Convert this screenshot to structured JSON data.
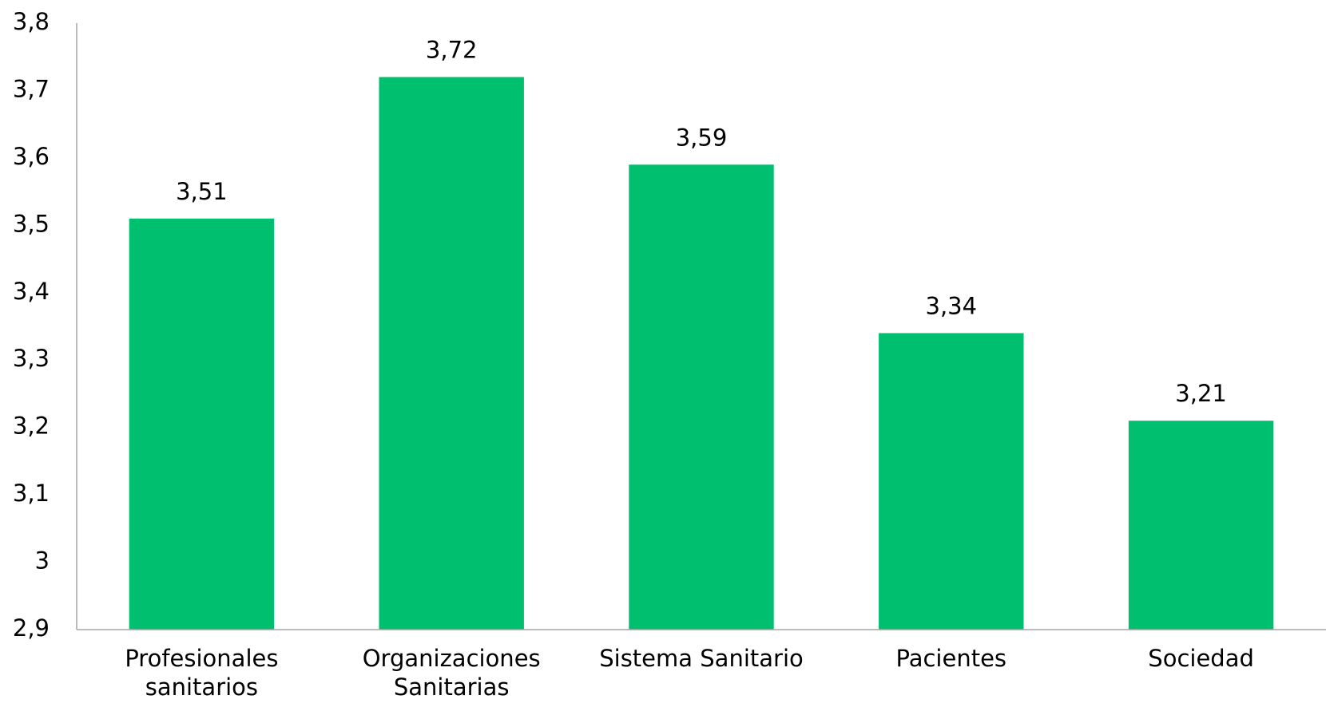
{
  "chart_data": {
    "type": "bar",
    "categories": [
      "Profesionales sanitarios",
      "Organizaciones Sanitarias",
      "Sistema Sanitario",
      "Pacientes",
      "Sociedad"
    ],
    "values": [
      3.51,
      3.72,
      3.59,
      3.34,
      3.21
    ],
    "value_labels": [
      "3,51",
      "3,72",
      "3,59",
      "3,34",
      "3,21"
    ],
    "color": "#00bf6f",
    "ylim": [
      2.9,
      3.8
    ],
    "yticks": [
      {
        "value": 2.9,
        "label": "2,9"
      },
      3,
      {
        "value": 3.1,
        "label": "3,1"
      },
      {
        "value": 3.2,
        "label": "3,2"
      },
      {
        "value": 3.3,
        "label": "3,3"
      },
      {
        "value": 3.4,
        "label": "3,4"
      },
      {
        "value": 3.5,
        "label": "3,5"
      },
      {
        "value": 3.6,
        "label": "3,6"
      },
      {
        "value": 3.7,
        "label": "3,7"
      },
      {
        "value": 3.8,
        "label": "3,8"
      }
    ],
    "grid": false
  }
}
